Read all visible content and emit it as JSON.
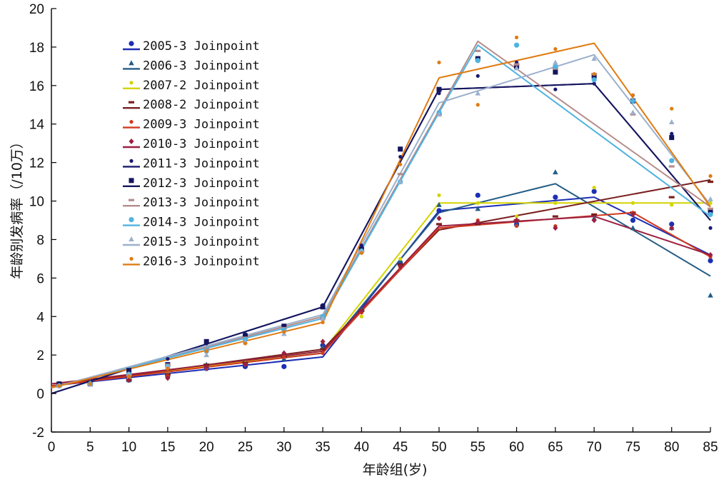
{
  "chart_data": {
    "type": "line",
    "title": "",
    "xlabel": "年龄组(岁)",
    "ylabel": "年龄别发病率（/10万）",
    "xlim": [
      0,
      85
    ],
    "ylim": [
      -2,
      20
    ],
    "x_ticks": [
      0,
      5,
      10,
      15,
      20,
      25,
      30,
      35,
      40,
      45,
      50,
      55,
      60,
      65,
      70,
      75,
      80,
      85
    ],
    "y_ticks": [
      -2,
      0,
      2,
      4,
      6,
      8,
      10,
      12,
      14,
      16,
      18,
      20
    ],
    "grid": false,
    "legend_position": "top-left",
    "x_points": [
      1,
      5,
      10,
      15,
      20,
      25,
      30,
      35,
      40,
      45,
      50,
      55,
      60,
      65,
      70,
      75,
      80,
      85
    ],
    "series": [
      {
        "name": "2005-3 Joinpoint",
        "color": "#1c2fb4",
        "marker": "circle",
        "joinpoint": {
          "x": [
            0,
            35,
            50,
            70,
            85
          ],
          "y": [
            0.4,
            1.9,
            9.5,
            10.2,
            7.2
          ]
        },
        "observed": [
          0.5,
          0.5,
          0.7,
          0.9,
          1.3,
          1.4,
          1.4,
          2.5,
          4.3,
          6.8,
          9.5,
          10.3,
          8.8,
          10.2,
          10.5,
          9.0,
          8.8,
          6.9
        ]
      },
      {
        "name": "2006-3 Joinpoint",
        "color": "#245c86",
        "marker": "triangle",
        "joinpoint": {
          "x": [
            0,
            35,
            50,
            65,
            85
          ],
          "y": [
            0.5,
            2.1,
            9.4,
            10.9,
            6.1
          ]
        },
        "observed": [
          0.5,
          0.6,
          0.7,
          1.0,
          1.5,
          1.6,
          1.8,
          2.4,
          4.4,
          6.9,
          9.8,
          9.6,
          8.8,
          11.5,
          9.1,
          8.6,
          8.6,
          5.1
        ]
      },
      {
        "name": "2007-2 Joinpoint",
        "color": "#d4d400",
        "marker": "dot",
        "joinpoint": {
          "x": [
            0,
            35,
            50,
            85
          ],
          "y": [
            0.4,
            2.2,
            9.9,
            9.9
          ]
        },
        "observed": [
          0.4,
          0.5,
          0.8,
          1.0,
          1.4,
          1.6,
          1.9,
          2.7,
          4.0,
          7.0,
          10.3,
          9.9,
          9.2,
          9.9,
          10.7,
          9.9,
          9.8,
          9.9
        ]
      },
      {
        "name": "2008-2 Joinpoint",
        "color": "#7a1f1f",
        "marker": "dash",
        "joinpoint": {
          "x": [
            0,
            35,
            50,
            85
          ],
          "y": [
            0.4,
            2.3,
            8.5,
            11.1
          ]
        },
        "observed": [
          0.4,
          0.5,
          0.7,
          1.0,
          1.5,
          1.6,
          1.9,
          2.3,
          4.3,
          6.7,
          8.8,
          8.8,
          9.0,
          9.2,
          9.3,
          9.4,
          10.2,
          11.0
        ]
      },
      {
        "name": "2009-3 Joinpoint",
        "color": "#d23a1e",
        "marker": "dot",
        "joinpoint": {
          "x": [
            0,
            35,
            50,
            75,
            85
          ],
          "y": [
            0.4,
            2.1,
            8.6,
            9.4,
            7.1
          ]
        },
        "observed": [
          0.4,
          0.5,
          0.7,
          0.9,
          1.3,
          1.5,
          1.9,
          2.1,
          4.2,
          6.5,
          9.1,
          9.0,
          8.7,
          8.7,
          9.0,
          9.4,
          8.6,
          7.1
        ]
      },
      {
        "name": "2010-3 Joinpoint",
        "color": "#9b2040",
        "marker": "diamond",
        "joinpoint": {
          "x": [
            0,
            35,
            50,
            70,
            85
          ],
          "y": [
            0.5,
            2.2,
            8.7,
            9.2,
            7.2
          ]
        },
        "observed": [
          0.4,
          0.5,
          0.7,
          0.8,
          1.4,
          1.5,
          2.1,
          2.7,
          4.3,
          6.6,
          9.1,
          8.9,
          9.0,
          8.6,
          9.0,
          9.3,
          8.6,
          7.2
        ]
      },
      {
        "name": "2011-3 Joinpoint",
        "color": "#1a1a70",
        "marker": "dot",
        "joinpoint": {
          "x": [
            0,
            35,
            50,
            70,
            85
          ],
          "y": [
            0.0,
            4.5,
            15.8,
            16.1,
            9.0
          ]
        },
        "observed": [
          0.5,
          0.5,
          1.2,
          1.8,
          2.6,
          3.1,
          3.4,
          4.6,
          7.7,
          12.3,
          15.6,
          16.5,
          17.2,
          15.8,
          16.1,
          15.5,
          13.5,
          8.6
        ]
      },
      {
        "name": "2012-3 Joinpoint",
        "color": "#15155e",
        "marker": "square",
        "joinpoint": {
          "x": [
            0,
            35,
            50,
            70,
            85
          ],
          "y": [
            0.0,
            4.5,
            15.8,
            16.1,
            9.0
          ]
        },
        "observed": [
          0.5,
          0.5,
          1.2,
          1.5,
          2.7,
          3.0,
          3.5,
          4.5,
          7.5,
          12.7,
          15.8,
          17.4,
          17.0,
          16.7,
          16.5,
          15.2,
          13.3,
          9.5
        ]
      },
      {
        "name": "2013-3 Joinpoint",
        "color": "#b58c8c",
        "marker": "dash",
        "joinpoint": {
          "x": [
            0,
            35,
            50,
            55,
            85
          ],
          "y": [
            0.3,
            4.0,
            14.7,
            18.3,
            9.7
          ]
        },
        "observed": [
          0.4,
          0.5,
          1.0,
          1.5,
          2.3,
          2.9,
          3.4,
          3.9,
          7.4,
          11.4,
          14.5,
          17.8,
          17.1,
          16.9,
          16.6,
          14.5,
          11.8,
          9.6
        ]
      },
      {
        "name": "2014-3 Joinpoint",
        "color": "#4fb3e0",
        "marker": "circle",
        "joinpoint": {
          "x": [
            0,
            35,
            50,
            55,
            85
          ],
          "y": [
            0.3,
            3.9,
            14.6,
            18.1,
            9.2
          ]
        },
        "observed": [
          0.4,
          0.5,
          1.0,
          1.4,
          2.2,
          2.8,
          3.3,
          4.0,
          7.4,
          11.0,
          14.6,
          17.3,
          18.1,
          17.0,
          16.3,
          15.2,
          12.1,
          9.3
        ]
      },
      {
        "name": "2015-3 Joinpoint",
        "color": "#9ab0cc",
        "marker": "triangle",
        "joinpoint": {
          "x": [
            0,
            35,
            50,
            70,
            85
          ],
          "y": [
            0.3,
            4.1,
            15.1,
            17.6,
            9.8
          ]
        },
        "observed": [
          0.4,
          0.5,
          1.0,
          1.4,
          2.0,
          2.7,
          3.1,
          3.9,
          7.4,
          11.0,
          14.5,
          15.6,
          16.9,
          17.2,
          17.4,
          14.6,
          14.1,
          10.1
        ]
      },
      {
        "name": "2016-3 Joinpoint",
        "color": "#e07b12",
        "marker": "dot",
        "joinpoint": {
          "x": [
            0,
            35,
            50,
            70,
            85
          ],
          "y": [
            0.3,
            3.7,
            16.4,
            18.2,
            9.7
          ]
        },
        "observed": [
          0.4,
          0.5,
          0.9,
          1.3,
          2.2,
          2.6,
          3.2,
          3.7,
          7.3,
          11.9,
          17.2,
          15.0,
          18.5,
          17.9,
          16.6,
          15.5,
          14.8,
          11.3
        ]
      }
    ]
  }
}
